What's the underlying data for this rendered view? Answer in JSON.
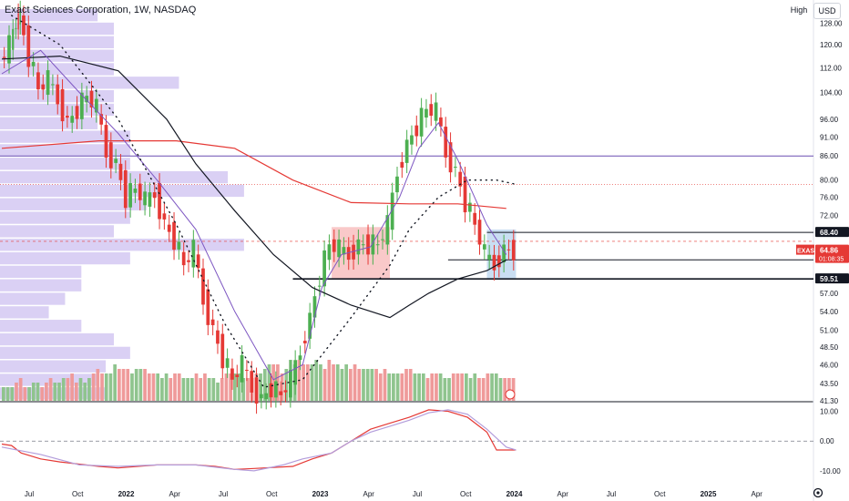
{
  "header": {
    "title": "Exact Sciences Corporation, 1W, NASDAQ",
    "scale_label": "High",
    "currency_label": "USD"
  },
  "price_labels": {
    "resistance": "68.40",
    "current_symbol": "EXAS",
    "current_price": "64.86",
    "countdown": "01:08:35",
    "support": "59.51"
  },
  "colors": {
    "up": "#4caf50",
    "down": "#e53935",
    "up_vol": "#8fc48e",
    "down_vol": "#ef9a9a",
    "volume_profile": "#d4c8f2",
    "ma_long": "#e53935",
    "ma_mid": "#131722",
    "ma_short": "#7e57c2",
    "resistance_line": "#6a4fb2",
    "oscillator_fast": "#e53935",
    "oscillator_slow": "#b39ddb"
  },
  "chart_data": [
    {
      "type": "candlestick",
      "title": "Exact Sciences Corporation, 1W, NASDAQ",
      "x_ticks": [
        "Jul",
        "Oct",
        "2022",
        "Apr",
        "Jul",
        "Oct",
        "2023",
        "Apr",
        "Jul",
        "Oct",
        "2024",
        "Apr",
        "Jul",
        "Oct",
        "2025",
        "Apr"
      ],
      "y_ticks": [
        128.0,
        120.0,
        112.0,
        104.0,
        96.0,
        91.0,
        86.0,
        80.0,
        76.0,
        72.0,
        68.4,
        64.86,
        59.51,
        57.0,
        54.0,
        51.0,
        48.5,
        46.0,
        43.5,
        41.3
      ],
      "y_scale": "log",
      "y_range": [
        41.3,
        135
      ],
      "last_close": 64.86,
      "horizontal_levels": [
        86.0,
        79.0,
        68.4,
        66.6,
        63.0,
        59.51
      ],
      "zones": [
        {
          "kind": "red",
          "t_start": 1.7,
          "t_end": 2.0,
          "low": 59.5,
          "high": 69.5
        },
        {
          "kind": "blue",
          "t_start": 2.5,
          "t_end": 2.65,
          "low": 59.5,
          "high": 69.0
        }
      ],
      "ohlc_weekly_sample": [
        {
          "t": 0.0,
          "c": 114
        },
        {
          "t": 0.05,
          "c": 120
        },
        {
          "t": 0.08,
          "c": 128
        },
        {
          "t": 0.1,
          "c": 131
        },
        {
          "t": 0.15,
          "c": 116
        },
        {
          "t": 0.2,
          "c": 105
        },
        {
          "t": 0.25,
          "c": 108
        },
        {
          "t": 0.3,
          "c": 102
        },
        {
          "t": 0.35,
          "c": 95
        },
        {
          "t": 0.4,
          "c": 99
        },
        {
          "t": 0.45,
          "c": 103
        },
        {
          "t": 0.5,
          "c": 99
        },
        {
          "t": 0.55,
          "c": 87
        },
        {
          "t": 0.6,
          "c": 84
        },
        {
          "t": 0.65,
          "c": 76
        },
        {
          "t": 0.7,
          "c": 78
        },
        {
          "t": 0.75,
          "c": 75
        },
        {
          "t": 0.8,
          "c": 77
        },
        {
          "t": 0.85,
          "c": 70
        },
        {
          "t": 0.9,
          "c": 67
        },
        {
          "t": 0.95,
          "c": 62
        },
        {
          "t": 1.0,
          "c": 65
        },
        {
          "t": 1.05,
          "c": 56
        },
        {
          "t": 1.1,
          "c": 51
        },
        {
          "t": 1.15,
          "c": 47
        },
        {
          "t": 1.2,
          "c": 44
        },
        {
          "t": 1.25,
          "c": 46
        },
        {
          "t": 1.3,
          "c": 43
        },
        {
          "t": 1.35,
          "c": 41.5
        },
        {
          "t": 1.4,
          "c": 43
        },
        {
          "t": 1.45,
          "c": 42
        },
        {
          "t": 1.5,
          "c": 44
        },
        {
          "t": 1.55,
          "c": 48
        },
        {
          "t": 1.6,
          "c": 53
        },
        {
          "t": 1.65,
          "c": 60
        },
        {
          "t": 1.7,
          "c": 66
        },
        {
          "t": 1.75,
          "c": 65
        },
        {
          "t": 1.8,
          "c": 64
        },
        {
          "t": 1.85,
          "c": 66
        },
        {
          "t": 1.9,
          "c": 66
        },
        {
          "t": 1.95,
          "c": 66
        },
        {
          "t": 2.0,
          "c": 70
        },
        {
          "t": 2.05,
          "c": 82
        },
        {
          "t": 2.1,
          "c": 89
        },
        {
          "t": 2.15,
          "c": 94
        },
        {
          "t": 2.2,
          "c": 99
        },
        {
          "t": 2.25,
          "c": 98
        },
        {
          "t": 2.3,
          "c": 87
        },
        {
          "t": 2.35,
          "c": 82
        },
        {
          "t": 2.4,
          "c": 75
        },
        {
          "t": 2.45,
          "c": 70
        },
        {
          "t": 2.5,
          "c": 64
        },
        {
          "t": 2.55,
          "c": 62
        },
        {
          "t": 2.6,
          "c": 65
        },
        {
          "t": 2.65,
          "c": 64.86
        }
      ],
      "moving_averages": [
        {
          "name": "long",
          "points": [
            [
              0.0,
              88
            ],
            [
              0.5,
              90
            ],
            [
              0.9,
              90
            ],
            [
              1.2,
              88
            ],
            [
              1.5,
              80
            ],
            [
              1.8,
              74.8
            ],
            [
              2.1,
              74.5
            ],
            [
              2.35,
              74.5
            ],
            [
              2.6,
              73.5
            ]
          ]
        },
        {
          "name": "mid",
          "points": [
            [
              0.0,
              115
            ],
            [
              0.3,
              116
            ],
            [
              0.6,
              111
            ],
            [
              0.85,
              96
            ],
            [
              1.0,
              84
            ],
            [
              1.2,
              73
            ],
            [
              1.4,
              64
            ],
            [
              1.6,
              58
            ],
            [
              1.8,
              55
            ],
            [
              2.0,
              53
            ],
            [
              2.1,
              55
            ],
            [
              2.2,
              57
            ],
            [
              2.35,
              59.5
            ],
            [
              2.5,
              61
            ],
            [
              2.6,
              63
            ]
          ]
        },
        {
          "name": "short",
          "points": [
            [
              0.0,
              110
            ],
            [
              0.2,
              118
            ],
            [
              0.4,
              104
            ],
            [
              0.6,
              92
            ],
            [
              0.8,
              80
            ],
            [
              1.0,
              69
            ],
            [
              1.2,
              54
            ],
            [
              1.4,
              44
            ],
            [
              1.55,
              46
            ],
            [
              1.65,
              58
            ],
            [
              1.75,
              64
            ],
            [
              1.9,
              65.5
            ],
            [
              2.05,
              76
            ],
            [
              2.15,
              88
            ],
            [
              2.25,
              95
            ],
            [
              2.35,
              85
            ],
            [
              2.5,
              70
            ],
            [
              2.6,
              64
            ]
          ]
        }
      ],
      "dotted_trend": [
        [
          0.05,
          131
        ],
        [
          0.3,
          120
        ],
        [
          0.6,
          96
        ],
        [
          0.9,
          70
        ],
        [
          1.15,
          52
        ],
        [
          1.35,
          43
        ],
        [
          1.55,
          44
        ],
        [
          1.8,
          53
        ],
        [
          2.0,
          62
        ],
        [
          2.1,
          69
        ],
        [
          2.25,
          76
        ],
        [
          2.4,
          80
        ],
        [
          2.55,
          80
        ],
        [
          2.65,
          79
        ]
      ],
      "volume": [
        3,
        3,
        3,
        4,
        5,
        3,
        3,
        4,
        4,
        3,
        4,
        5,
        4,
        4,
        5,
        5,
        6,
        4,
        5,
        4,
        5,
        6,
        7,
        6,
        6,
        6,
        8,
        7,
        7,
        7,
        6,
        7,
        7,
        7,
        6,
        6,
        6,
        5,
        6,
        5,
        6,
        6,
        5,
        5,
        5,
        6,
        5,
        6,
        5,
        5,
        4,
        5,
        6,
        6,
        6,
        6,
        5,
        5,
        5,
        6,
        6,
        7,
        8,
        8,
        8,
        6,
        7,
        9,
        8,
        9,
        8,
        8,
        8,
        9,
        8,
        7,
        9,
        8,
        8,
        7,
        8,
        7,
        8,
        7,
        7,
        7,
        7,
        7,
        6,
        7,
        6,
        6,
        6,
        6,
        7,
        7,
        6,
        6,
        6,
        5,
        6,
        6,
        6,
        5,
        5,
        6,
        6,
        6,
        6,
        5,
        6,
        5,
        5,
        6,
        6,
        6,
        5,
        5,
        5,
        5
      ],
      "volume_profile": [
        0.12,
        0.14,
        0.14,
        0.14,
        0.14,
        0.22,
        0.14,
        0.14,
        0.12,
        0.16,
        0.16,
        0.16,
        0.28,
        0.3,
        0.18,
        0.16,
        0.14,
        0.3,
        0.16,
        0.1,
        0.1,
        0.08,
        0.06,
        0.1,
        0.14,
        0.16,
        0.13,
        0.12,
        0.13
      ]
    },
    {
      "type": "line",
      "title": "",
      "y_ticks": [
        10.0,
        0.0,
        -10.0
      ],
      "y_range": [
        -14,
        12
      ],
      "series": [
        {
          "name": "fast",
          "color": "#e53935",
          "points": [
            [
              0.0,
              -1
            ],
            [
              0.05,
              -1.5
            ],
            [
              0.1,
              -4
            ],
            [
              0.2,
              -6
            ],
            [
              0.3,
              -7
            ],
            [
              0.5,
              -8.5
            ],
            [
              0.6,
              -9
            ],
            [
              0.8,
              -8
            ],
            [
              1.0,
              -8
            ],
            [
              1.1,
              -8.5
            ],
            [
              1.2,
              -9.5
            ],
            [
              1.3,
              -9.2
            ],
            [
              1.5,
              -8.5
            ],
            [
              1.6,
              -6
            ],
            [
              1.7,
              -4
            ],
            [
              1.8,
              0
            ],
            [
              1.9,
              4
            ],
            [
              2.0,
              6
            ],
            [
              2.1,
              8
            ],
            [
              2.2,
              10.5
            ],
            [
              2.3,
              10
            ],
            [
              2.4,
              8
            ],
            [
              2.5,
              3
            ],
            [
              2.55,
              -3
            ],
            [
              2.65,
              -3
            ]
          ]
        },
        {
          "name": "slow",
          "color": "#b39ddb",
          "points": [
            [
              0.0,
              -2
            ],
            [
              0.2,
              -4.5
            ],
            [
              0.4,
              -8
            ],
            [
              0.6,
              -8.5
            ],
            [
              0.8,
              -8
            ],
            [
              1.0,
              -8
            ],
            [
              1.2,
              -9.5
            ],
            [
              1.3,
              -10
            ],
            [
              1.45,
              -8
            ],
            [
              1.55,
              -6
            ],
            [
              1.7,
              -4
            ],
            [
              1.8,
              0
            ],
            [
              1.9,
              3
            ],
            [
              2.0,
              5
            ],
            [
              2.1,
              7
            ],
            [
              2.2,
              9.5
            ],
            [
              2.3,
              10.5
            ],
            [
              2.4,
              9
            ],
            [
              2.5,
              4
            ],
            [
              2.6,
              -2
            ],
            [
              2.65,
              -3
            ]
          ]
        }
      ]
    }
  ]
}
